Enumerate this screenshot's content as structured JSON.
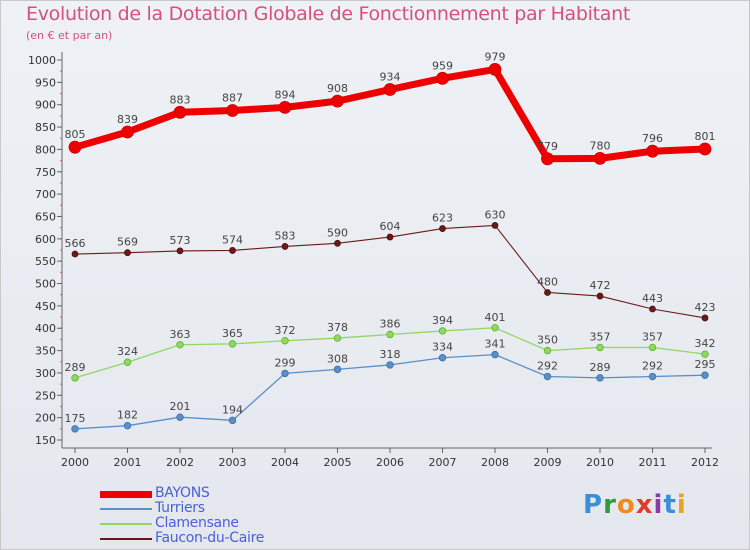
{
  "chart_data": {
    "type": "line",
    "title": "Evolution de la Dotation Globale de Fonctionnement par Habitant",
    "subtitle": "(en € et par an)",
    "xlabel": "",
    "ylabel": "",
    "categories": [
      "2000",
      "2001",
      "2002",
      "2003",
      "2004",
      "2005",
      "2006",
      "2007",
      "2008",
      "2009",
      "2010",
      "2011",
      "2012"
    ],
    "ylim": [
      150,
      1000
    ],
    "yticks": [
      150,
      200,
      250,
      300,
      350,
      400,
      450,
      500,
      550,
      600,
      650,
      700,
      750,
      800,
      850,
      900,
      950,
      1000
    ],
    "grid": false,
    "legend_position": "bottom-left",
    "series": [
      {
        "name": "BAYONS",
        "color": "#ee0000",
        "values": [
          805,
          839,
          883,
          887,
          894,
          908,
          934,
          959,
          979,
          779,
          780,
          796,
          801
        ]
      },
      {
        "name": "Turriers",
        "color": "#5b8fc8",
        "values": [
          175,
          182,
          201,
          194,
          299,
          308,
          318,
          334,
          341,
          292,
          289,
          292,
          295
        ]
      },
      {
        "name": "Clamensane",
        "color": "#90d860",
        "values": [
          289,
          324,
          363,
          365,
          372,
          378,
          386,
          394,
          401,
          350,
          357,
          357,
          342
        ]
      },
      {
        "name": "Faucon-du-Caire",
        "color": "#6b1a1a",
        "values": [
          566,
          569,
          573,
          574,
          583,
          590,
          604,
          623,
          630,
          480,
          472,
          443,
          423
        ]
      }
    ]
  },
  "brand": {
    "letters": [
      "P",
      "r",
      "o",
      "x",
      "i",
      "t",
      "i"
    ],
    "colors": [
      "#3b8ed8",
      "#2f9a3a",
      "#f08a1c",
      "#e03a2a",
      "#8b3aa6",
      "#3b8ed8",
      "#e8a21c"
    ]
  }
}
